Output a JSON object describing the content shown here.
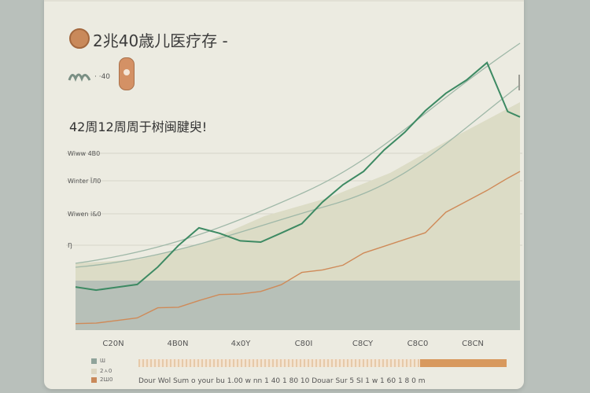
{
  "header": {
    "title": "2兆40歳儿医疗存 -",
    "mini_label": "· ·40"
  },
  "subtitle": "42周12周周于树闽腱臾!",
  "legend": {
    "items": [
      "Ɯ",
      "2ㅅ0",
      "2Ш0"
    ],
    "bottom_text": "Dour  Wol  Sum  o  your   bu   1.00   w   nn   1 40   1 80   10   Douar   Sur   5 SI   1   w   1 60   1 8 0 m"
  },
  "colors": {
    "green_line": "#3d8a63",
    "orange_line": "#cf8a58",
    "light_fill": "#dcdcc6",
    "band": "#b7c0b8",
    "guide": "#9fb8a8",
    "accent": "#c9895a"
  },
  "chart_data": {
    "type": "line",
    "title": "42周12周周于树闽腱臾!",
    "xlabel": "",
    "ylabel": "",
    "yticks": [
      "Wiww  4B0",
      "Winter  ЇЛ0",
      "Wiwen  i&0",
      "Ŋ"
    ],
    "xticks": [
      "C20N",
      "4B0N",
      "4x0Y",
      "C80I",
      "C8CY",
      "C8C0",
      "C8CN"
    ],
    "x": [
      0,
      5,
      10,
      15,
      20,
      25,
      30,
      35,
      40,
      45,
      50,
      55,
      60,
      65,
      70,
      75,
      80,
      85,
      90,
      95,
      100,
      105,
      108
    ],
    "series": [
      {
        "values": [
          10,
          10,
          11,
          12,
          20,
          30,
          40,
          37,
          33,
          32,
          36,
          42,
          52,
          60,
          66,
          76,
          86,
          96,
          104,
          110,
          118,
          96,
          93
        ]
      },
      {
        "values": [
          -8,
          -7,
          -5,
          -3,
          0,
          1,
          5,
          6,
          7,
          9,
          13,
          17,
          19,
          22,
          26,
          30,
          34,
          38,
          46,
          52,
          58,
          62,
          66
        ]
      }
    ],
    "ylim": [
      -10,
      130
    ]
  }
}
